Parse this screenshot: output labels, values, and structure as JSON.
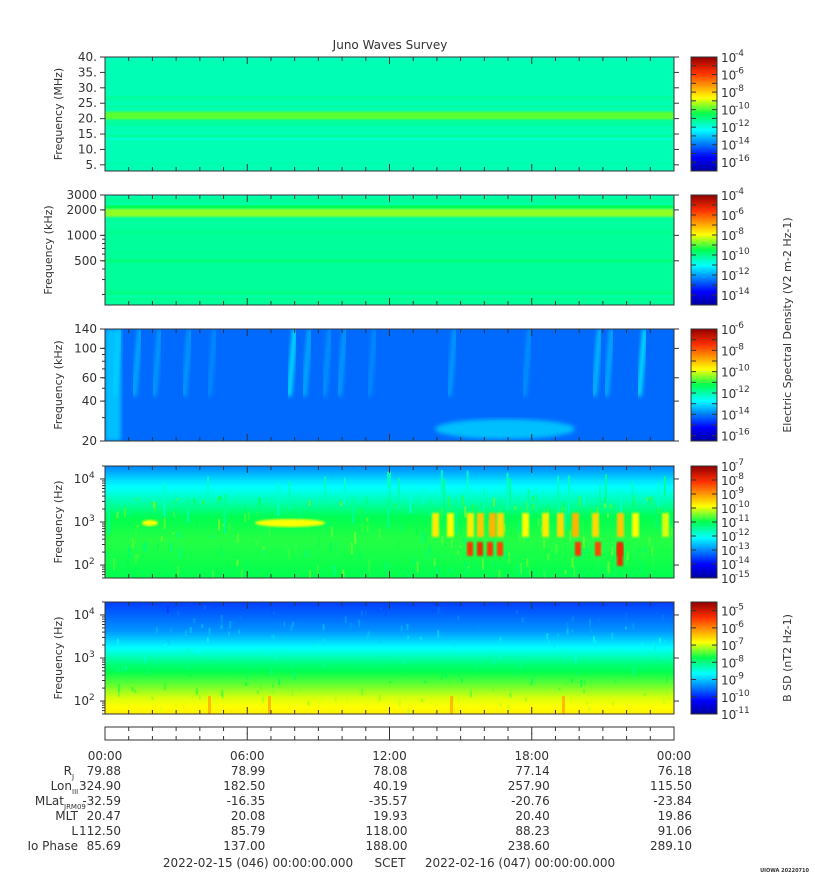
{
  "title": "Juno Waves Survey",
  "footer_mark": "UIOWA 20220710",
  "colors": {
    "frame": "#333333",
    "text": "#333333"
  },
  "chart_data": {
    "type": "heatmap",
    "panels": [
      {
        "ylabel": "Frequency (MHz)",
        "yticks": [
          "40.",
          "35.",
          "30.",
          "25.",
          "20.",
          "15.",
          "10.",
          "5."
        ],
        "yscale": "linear",
        "ylim": [
          3,
          40
        ],
        "colorbar_ticks": [
          "-4",
          "-6",
          "-8",
          "-10",
          "-12",
          "-14",
          "-16"
        ],
        "colorbar_range_exp": [
          -17,
          -4
        ],
        "background_level": 0.42,
        "band_freq": 21,
        "band_level": 0.55
      },
      {
        "ylabel": "Frequency (kHz)",
        "yticks": [
          "3000",
          "2000",
          "1000",
          "500"
        ],
        "yscale": "log",
        "ylim": [
          150,
          3000
        ],
        "colorbar_ticks": [
          "-4",
          "-6",
          "-8",
          "-10",
          "-12",
          "-14"
        ],
        "colorbar_range_exp": [
          -15,
          -4
        ],
        "background_level": 0.44,
        "band_freq": 1850,
        "band_level": 0.58
      },
      {
        "ylabel": "Frequency (kHz)",
        "yticks": [
          "140",
          "100",
          "60",
          "40",
          "20"
        ],
        "yscale": "log",
        "ylim": [
          20,
          140
        ],
        "colorbar_ticks": [
          "-6",
          "-8",
          "-10",
          "-12",
          "-14",
          "-16"
        ],
        "colorbar_range_exp": [
          -16.5,
          -6
        ],
        "background_level": 0.22
      },
      {
        "ylabel": "Frequency (Hz)",
        "yticks": [
          "10",
          "10",
          "10"
        ],
        "ytick_exps": [
          "4",
          "3",
          "2"
        ],
        "yscale": "log",
        "ylim": [
          50,
          20000
        ],
        "colorbar_ticks": [
          "-7",
          "-8",
          "-9",
          "-10",
          "-11",
          "-12",
          "-13",
          "-14",
          "-15"
        ],
        "colorbar_range_exp": [
          -15,
          -7
        ],
        "background_level": 0.5
      },
      {
        "ylabel": "Frequency (Hz)",
        "yticks": [
          "10",
          "10",
          "10"
        ],
        "ytick_exps": [
          "4",
          "3",
          "2"
        ],
        "yscale": "log",
        "ylim": [
          50,
          20000
        ],
        "colorbar_ticks": [
          "-5",
          "-6",
          "-7",
          "-8",
          "-9",
          "-10",
          "-11"
        ],
        "colorbar_range_exp": [
          -11,
          -4.5
        ],
        "background_level": 0.45
      }
    ],
    "colorbar_labels": {
      "electric": "Electric Spectral Density (V",
      "electric_mid": " m",
      "electric_end": " Hz",
      "magnetic": "B SD (nT",
      "magnetic_end": " Hz"
    },
    "ephemeris": {
      "time_ticks": [
        "00:00",
        "06:00",
        "12:00",
        "18:00",
        "00:00"
      ],
      "rows": [
        {
          "label": "R",
          "sub": "J",
          "values": [
            "79.88",
            "78.99",
            "78.08",
            "77.14",
            "76.18"
          ]
        },
        {
          "label": "Lon",
          "sub": "III",
          "values": [
            "324.90",
            "182.50",
            "40.19",
            "257.90",
            "115.50"
          ]
        },
        {
          "label": "MLat",
          "sub": "JRM09",
          "values": [
            "-32.59",
            "-16.35",
            "-35.57",
            "-20.76",
            "-23.84"
          ]
        },
        {
          "label": "MLT",
          "sub": "",
          "values": [
            "20.47",
            "20.08",
            "19.93",
            "20.40",
            "19.86"
          ]
        },
        {
          "label": "L",
          "sub": "",
          "values": [
            "112.50",
            "85.79",
            "118.00",
            "88.23",
            "91.06"
          ]
        },
        {
          "label": "Io Phase",
          "sub": "",
          "values": [
            "85.69",
            "137.00",
            "188.00",
            "238.60",
            "289.10"
          ]
        }
      ],
      "start": "2022-02-15 (046) 00:00:00.000",
      "scet": "SCET",
      "end": "2022-02-16 (047) 00:00:00.000"
    }
  }
}
